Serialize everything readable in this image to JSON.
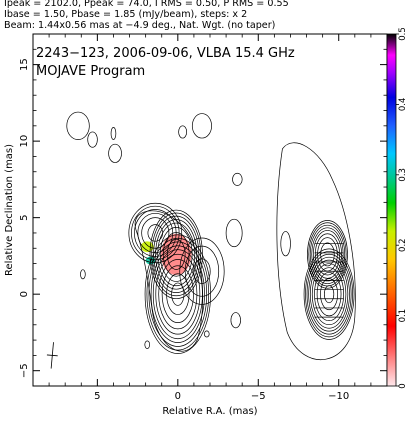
{
  "header": {
    "line1": "Ipeak = 2102.0, Ppeak = 74.0, I RMS = 0.50, P RMS = 0.55",
    "line2": "Ibase = 1.50, Pbase = 1.85 (mJy/beam), steps: x 2",
    "line3": "Beam: 1.44x0.56 mas at −4.9 deg., Nat. Wgt. (no taper)"
  },
  "chart_data": {
    "type": "heatmap",
    "title": "2243−123, 2006-09-06, VLBA 15.4 GHz",
    "subtitle": "MOJAVE Program",
    "xlabel": "Relative R.A. (mas)",
    "ylabel": "Relative Declination (mas)",
    "xlim": [
      9,
      -13
    ],
    "ylim": [
      -6,
      17
    ],
    "x_ticks": [
      5,
      0,
      -5,
      -10
    ],
    "x_tick_labels": [
      "5",
      "0",
      "−5",
      "−10"
    ],
    "y_ticks": [
      -5,
      0,
      5,
      10,
      15
    ],
    "y_tick_labels": [
      "−5",
      "0",
      "5",
      "10",
      "15"
    ],
    "colorbar": {
      "min": 0,
      "max": 0.5,
      "ticks": [
        0,
        0.1,
        0.2,
        0.3,
        0.4,
        0.5
      ],
      "tick_labels": [
        "0",
        "0.1",
        "0.2",
        "0.3",
        "0.4",
        "0.5"
      ]
    },
    "contour_components": [
      {
        "x": 0.0,
        "y": 0.0,
        "sx": 1.05,
        "sy": 2.0,
        "peak": 1.0
      },
      {
        "x": 0.1,
        "y": 2.6,
        "sx": 0.9,
        "sy": 1.6,
        "peak": 0.45
      },
      {
        "x": 1.4,
        "y": 4.0,
        "sx": 1.1,
        "sy": 1.3,
        "peak": 0.08
      },
      {
        "x": -1.5,
        "y": 1.5,
        "sx": 1.4,
        "sy": 2.2,
        "peak": 0.01
      }
    ],
    "polarization_regions": [
      {
        "x": 0.1,
        "y": 2.6,
        "sx": 0.95,
        "sy": 1.35,
        "value": 0.07
      },
      {
        "x": 1.9,
        "y": 3.1,
        "sx": 0.4,
        "sy": 0.35,
        "value": 0.22
      },
      {
        "x": 1.7,
        "y": 2.2,
        "sx": 0.3,
        "sy": 0.25,
        "value": 0.3
      }
    ],
    "beam": {
      "major_mas": 1.44,
      "minor_mas": 0.56,
      "pa_deg": -4.9,
      "x": 7.8,
      "y": -4.0
    },
    "polarization_panel_offset_mas": -9.4
  }
}
